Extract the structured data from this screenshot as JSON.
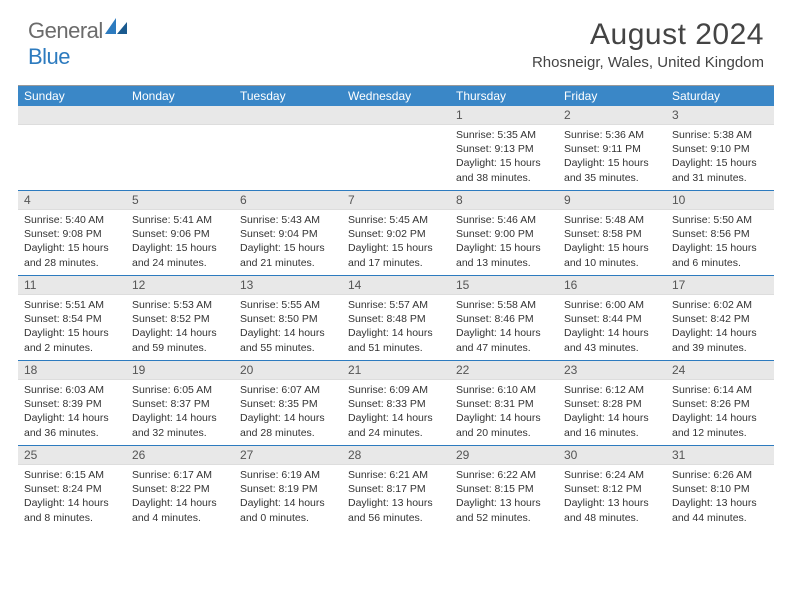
{
  "logo": {
    "text_general": "General",
    "text_blue": "Blue"
  },
  "title": "August 2024",
  "location": "Rhosneigr, Wales, United Kingdom",
  "weekday_labels": [
    "Sunday",
    "Monday",
    "Tuesday",
    "Wednesday",
    "Thursday",
    "Friday",
    "Saturday"
  ],
  "colors": {
    "header_bg": "#3a87c7",
    "week_divider": "#2d7bbf",
    "daynum_bg": "#e8e8e8",
    "text": "#333333"
  },
  "weeks": [
    [
      {
        "n": "",
        "lines": []
      },
      {
        "n": "",
        "lines": []
      },
      {
        "n": "",
        "lines": []
      },
      {
        "n": "",
        "lines": []
      },
      {
        "n": "1",
        "lines": [
          "Sunrise: 5:35 AM",
          "Sunset: 9:13 PM",
          "Daylight: 15 hours",
          "and 38 minutes."
        ]
      },
      {
        "n": "2",
        "lines": [
          "Sunrise: 5:36 AM",
          "Sunset: 9:11 PM",
          "Daylight: 15 hours",
          "and 35 minutes."
        ]
      },
      {
        "n": "3",
        "lines": [
          "Sunrise: 5:38 AM",
          "Sunset: 9:10 PM",
          "Daylight: 15 hours",
          "and 31 minutes."
        ]
      }
    ],
    [
      {
        "n": "4",
        "lines": [
          "Sunrise: 5:40 AM",
          "Sunset: 9:08 PM",
          "Daylight: 15 hours",
          "and 28 minutes."
        ]
      },
      {
        "n": "5",
        "lines": [
          "Sunrise: 5:41 AM",
          "Sunset: 9:06 PM",
          "Daylight: 15 hours",
          "and 24 minutes."
        ]
      },
      {
        "n": "6",
        "lines": [
          "Sunrise: 5:43 AM",
          "Sunset: 9:04 PM",
          "Daylight: 15 hours",
          "and 21 minutes."
        ]
      },
      {
        "n": "7",
        "lines": [
          "Sunrise: 5:45 AM",
          "Sunset: 9:02 PM",
          "Daylight: 15 hours",
          "and 17 minutes."
        ]
      },
      {
        "n": "8",
        "lines": [
          "Sunrise: 5:46 AM",
          "Sunset: 9:00 PM",
          "Daylight: 15 hours",
          "and 13 minutes."
        ]
      },
      {
        "n": "9",
        "lines": [
          "Sunrise: 5:48 AM",
          "Sunset: 8:58 PM",
          "Daylight: 15 hours",
          "and 10 minutes."
        ]
      },
      {
        "n": "10",
        "lines": [
          "Sunrise: 5:50 AM",
          "Sunset: 8:56 PM",
          "Daylight: 15 hours",
          "and 6 minutes."
        ]
      }
    ],
    [
      {
        "n": "11",
        "lines": [
          "Sunrise: 5:51 AM",
          "Sunset: 8:54 PM",
          "Daylight: 15 hours",
          "and 2 minutes."
        ]
      },
      {
        "n": "12",
        "lines": [
          "Sunrise: 5:53 AM",
          "Sunset: 8:52 PM",
          "Daylight: 14 hours",
          "and 59 minutes."
        ]
      },
      {
        "n": "13",
        "lines": [
          "Sunrise: 5:55 AM",
          "Sunset: 8:50 PM",
          "Daylight: 14 hours",
          "and 55 minutes."
        ]
      },
      {
        "n": "14",
        "lines": [
          "Sunrise: 5:57 AM",
          "Sunset: 8:48 PM",
          "Daylight: 14 hours",
          "and 51 minutes."
        ]
      },
      {
        "n": "15",
        "lines": [
          "Sunrise: 5:58 AM",
          "Sunset: 8:46 PM",
          "Daylight: 14 hours",
          "and 47 minutes."
        ]
      },
      {
        "n": "16",
        "lines": [
          "Sunrise: 6:00 AM",
          "Sunset: 8:44 PM",
          "Daylight: 14 hours",
          "and 43 minutes."
        ]
      },
      {
        "n": "17",
        "lines": [
          "Sunrise: 6:02 AM",
          "Sunset: 8:42 PM",
          "Daylight: 14 hours",
          "and 39 minutes."
        ]
      }
    ],
    [
      {
        "n": "18",
        "lines": [
          "Sunrise: 6:03 AM",
          "Sunset: 8:39 PM",
          "Daylight: 14 hours",
          "and 36 minutes."
        ]
      },
      {
        "n": "19",
        "lines": [
          "Sunrise: 6:05 AM",
          "Sunset: 8:37 PM",
          "Daylight: 14 hours",
          "and 32 minutes."
        ]
      },
      {
        "n": "20",
        "lines": [
          "Sunrise: 6:07 AM",
          "Sunset: 8:35 PM",
          "Daylight: 14 hours",
          "and 28 minutes."
        ]
      },
      {
        "n": "21",
        "lines": [
          "Sunrise: 6:09 AM",
          "Sunset: 8:33 PM",
          "Daylight: 14 hours",
          "and 24 minutes."
        ]
      },
      {
        "n": "22",
        "lines": [
          "Sunrise: 6:10 AM",
          "Sunset: 8:31 PM",
          "Daylight: 14 hours",
          "and 20 minutes."
        ]
      },
      {
        "n": "23",
        "lines": [
          "Sunrise: 6:12 AM",
          "Sunset: 8:28 PM",
          "Daylight: 14 hours",
          "and 16 minutes."
        ]
      },
      {
        "n": "24",
        "lines": [
          "Sunrise: 6:14 AM",
          "Sunset: 8:26 PM",
          "Daylight: 14 hours",
          "and 12 minutes."
        ]
      }
    ],
    [
      {
        "n": "25",
        "lines": [
          "Sunrise: 6:15 AM",
          "Sunset: 8:24 PM",
          "Daylight: 14 hours",
          "and 8 minutes."
        ]
      },
      {
        "n": "26",
        "lines": [
          "Sunrise: 6:17 AM",
          "Sunset: 8:22 PM",
          "Daylight: 14 hours",
          "and 4 minutes."
        ]
      },
      {
        "n": "27",
        "lines": [
          "Sunrise: 6:19 AM",
          "Sunset: 8:19 PM",
          "Daylight: 14 hours",
          "and 0 minutes."
        ]
      },
      {
        "n": "28",
        "lines": [
          "Sunrise: 6:21 AM",
          "Sunset: 8:17 PM",
          "Daylight: 13 hours",
          "and 56 minutes."
        ]
      },
      {
        "n": "29",
        "lines": [
          "Sunrise: 6:22 AM",
          "Sunset: 8:15 PM",
          "Daylight: 13 hours",
          "and 52 minutes."
        ]
      },
      {
        "n": "30",
        "lines": [
          "Sunrise: 6:24 AM",
          "Sunset: 8:12 PM",
          "Daylight: 13 hours",
          "and 48 minutes."
        ]
      },
      {
        "n": "31",
        "lines": [
          "Sunrise: 6:26 AM",
          "Sunset: 8:10 PM",
          "Daylight: 13 hours",
          "and 44 minutes."
        ]
      }
    ]
  ]
}
